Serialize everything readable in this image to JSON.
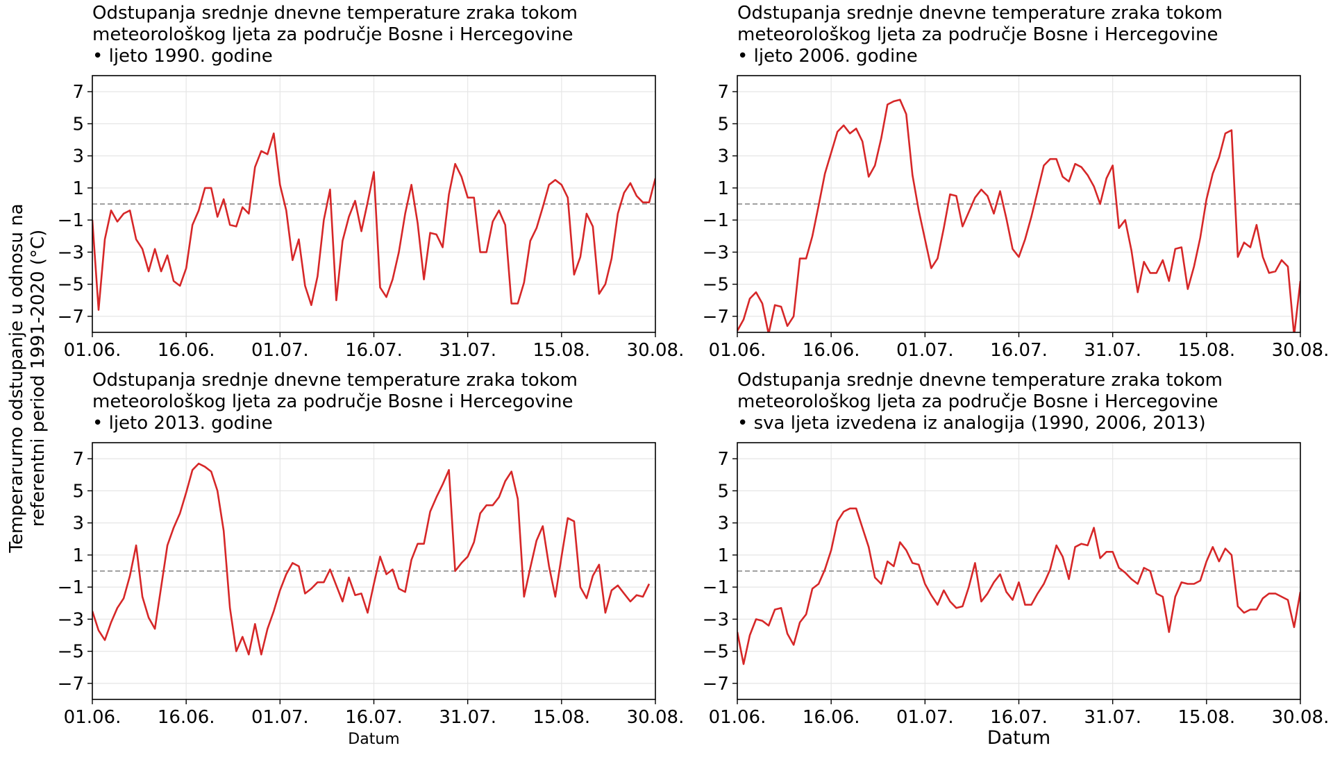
{
  "figure": {
    "ylabel_line1": "Temperarurno odstupanje u odnosu na",
    "ylabel_line2": "referentni period 1991-2020 (°C)",
    "xlabel": "Datum",
    "colors": {
      "line": "#d62728",
      "zero_line": "#808080",
      "grid": "#e6e6e6",
      "frame": "#000000"
    }
  },
  "chart_data": [
    {
      "type": "line",
      "title_lines": [
        "Odstupanja srednje dnevne temperature zraka tokom",
        "meteorološkog ljeta za područje Bosne i Hercegovine",
        "• ljeto 1990. godine"
      ],
      "xlabel": "",
      "x_start": "01.06.",
      "x_tick_labels": [
        "01.06.",
        "16.06.",
        "01.07.",
        "16.07.",
        "31.07.",
        "15.08.",
        "30.08."
      ],
      "x_tick_days": [
        0,
        15,
        30,
        45,
        60,
        75,
        90
      ],
      "xlim_days": [
        0,
        90
      ],
      "y_ticks": [
        -7,
        -5,
        -3,
        -1,
        1,
        3,
        5,
        7
      ],
      "ylim": [
        -8,
        8
      ],
      "grid": true,
      "reference_line": 0,
      "values": [
        -1.0,
        -6.6,
        -2.2,
        -0.4,
        -1.1,
        -0.6,
        -0.4,
        -2.2,
        -2.8,
        -4.2,
        -2.8,
        -4.2,
        -3.2,
        -4.8,
        -5.1,
        -4.0,
        -1.3,
        -0.4,
        1.0,
        1.0,
        -0.8,
        0.3,
        -1.3,
        -1.4,
        -0.2,
        -0.6,
        2.3,
        3.3,
        3.1,
        4.4,
        1.2,
        -0.4,
        -3.5,
        -2.2,
        -5.1,
        -6.3,
        -4.5,
        -1.0,
        0.9,
        -6.0,
        -2.3,
        -0.8,
        0.2,
        -1.7,
        0.1,
        2.0,
        -5.2,
        -5.8,
        -4.7,
        -3.0,
        -0.6,
        1.2,
        -1.2,
        -4.7,
        -1.8,
        -1.9,
        -2.7,
        0.6,
        2.5,
        1.7,
        0.4,
        0.4,
        -3.0,
        -3.0,
        -1.1,
        -0.4,
        -1.3,
        -6.2,
        -6.2,
        -4.9,
        -2.3,
        -1.5,
        -0.2,
        1.2,
        1.5,
        1.2,
        0.4,
        -4.4,
        -3.3,
        -0.6,
        -1.4,
        -5.6,
        -5.0,
        -3.4,
        -0.6,
        0.7,
        1.3,
        0.5,
        0.1,
        0.1,
        1.6
      ]
    },
    {
      "type": "line",
      "title_lines": [
        "Odstupanja srednje dnevne temperature zraka tokom",
        "meteorološkog ljeta za područje Bosne i Hercegovine",
        "• ljeto 2006. godine"
      ],
      "xlabel": "",
      "x_start": "01.06.",
      "x_tick_labels": [
        "01.06.",
        "16.06.",
        "01.07.",
        "16.07.",
        "31.07.",
        "15.08.",
        "30.08."
      ],
      "x_tick_days": [
        0,
        15,
        30,
        45,
        60,
        75,
        90
      ],
      "xlim_days": [
        0,
        90
      ],
      "y_ticks": [
        -7,
        -5,
        -3,
        -1,
        1,
        3,
        5,
        7
      ],
      "ylim": [
        -8,
        8
      ],
      "grid": true,
      "reference_line": 0,
      "values": [
        -7.9,
        -7.2,
        -5.9,
        -5.5,
        -6.2,
        -8.1,
        -6.3,
        -6.4,
        -7.6,
        -7.0,
        -3.4,
        -3.4,
        -2.0,
        -0.1,
        1.9,
        3.2,
        4.5,
        4.9,
        4.4,
        4.7,
        3.9,
        1.7,
        2.4,
        4.1,
        6.2,
        6.4,
        6.5,
        5.6,
        1.8,
        -0.4,
        -2.2,
        -4.0,
        -3.4,
        -1.5,
        0.6,
        0.5,
        -1.4,
        -0.5,
        0.4,
        0.9,
        0.5,
        -0.6,
        0.8,
        -0.9,
        -2.8,
        -3.3,
        -2.2,
        -0.8,
        0.8,
        2.4,
        2.8,
        2.8,
        1.7,
        1.4,
        2.5,
        2.3,
        1.8,
        1.1,
        0.0,
        1.6,
        2.4,
        -1.5,
        -1.0,
        -2.9,
        -5.5,
        -3.6,
        -4.3,
        -4.3,
        -3.5,
        -4.8,
        -2.8,
        -2.7,
        -5.3,
        -3.9,
        -2.1,
        0.3,
        1.9,
        2.9,
        4.4,
        4.6,
        -3.3,
        -2.4,
        -2.7,
        -1.3,
        -3.3,
        -4.3,
        -4.2,
        -3.5,
        -3.9,
        -8.2,
        -4.8
      ]
    },
    {
      "type": "line",
      "title_lines": [
        "Odstupanja srednje dnevne temperature zraka tokom",
        "meteorološkog ljeta za područje Bosne i Hercegovine",
        "• ljeto 2013. godine"
      ],
      "xlabel": "Datum",
      "x_start": "01.06.",
      "x_tick_labels": [
        "01.06.",
        "16.06.",
        "01.07.",
        "16.07.",
        "31.07.",
        "15.08.",
        "30.08."
      ],
      "x_tick_days": [
        0,
        15,
        30,
        45,
        60,
        75,
        90
      ],
      "xlim_days": [
        0,
        90
      ],
      "y_ticks": [
        -7,
        -5,
        -3,
        -1,
        1,
        3,
        5,
        7
      ],
      "ylim": [
        -8,
        8
      ],
      "grid": true,
      "reference_line": 0,
      "values": [
        -2.5,
        -3.7,
        -4.3,
        -3.2,
        -2.3,
        -1.7,
        -0.3,
        1.6,
        -1.6,
        -2.9,
        -3.6,
        -1.0,
        1.6,
        2.7,
        3.6,
        4.9,
        6.3,
        6.7,
        6.5,
        6.2,
        5.0,
        2.5,
        -2.3,
        -5.0,
        -4.1,
        -5.2,
        -3.3,
        -5.2,
        -3.6,
        -2.5,
        -1.2,
        -0.2,
        0.5,
        0.3,
        -1.4,
        -1.1,
        -0.7,
        -0.7,
        0.1,
        -0.9,
        -1.9,
        -0.4,
        -1.5,
        -1.4,
        -2.6,
        -0.8,
        0.9,
        -0.2,
        0.1,
        -1.1,
        -1.3,
        0.7,
        1.7,
        1.7,
        3.7,
        4.6,
        5.4,
        6.3,
        0.0,
        0.5,
        0.9,
        1.8,
        3.6,
        4.1,
        4.1,
        4.6,
        5.6,
        6.2,
        4.5,
        -1.6,
        0.2,
        1.9,
        2.8,
        0.3,
        -1.6,
        0.9,
        3.3,
        3.1,
        -1.0,
        -1.7,
        -0.3,
        0.4,
        -2.6,
        -1.2,
        -0.9,
        -1.4,
        -1.9,
        -1.5,
        -1.6,
        -0.8
      ]
    },
    {
      "type": "line",
      "title_lines": [
        "Odstupanja srednje dnevne temperature zraka tokom",
        "meteorološkog ljeta za područje Bosne i Hercegovine",
        "• sva ljeta izvedena iz analogija (1990, 2006, 2013)"
      ],
      "xlabel": "Datum",
      "x_start": "01.06.",
      "x_tick_labels": [
        "01.06.",
        "16.06.",
        "01.07.",
        "16.07.",
        "31.07.",
        "15.08.",
        "30.08."
      ],
      "x_tick_days": [
        0,
        15,
        30,
        45,
        60,
        75,
        90
      ],
      "xlim_days": [
        0,
        90
      ],
      "y_ticks": [
        -7,
        -5,
        -3,
        -1,
        1,
        3,
        5,
        7
      ],
      "ylim": [
        -8,
        8
      ],
      "grid": true,
      "reference_line": 0,
      "values": [
        -3.8,
        -5.8,
        -4.0,
        -3.0,
        -3.1,
        -3.4,
        -2.4,
        -2.3,
        -3.9,
        -4.6,
        -3.2,
        -2.7,
        -1.1,
        -0.8,
        0.1,
        1.3,
        3.1,
        3.7,
        3.9,
        3.9,
        2.7,
        1.5,
        -0.4,
        -0.8,
        0.6,
        0.3,
        1.8,
        1.3,
        0.5,
        0.4,
        -0.8,
        -1.5,
        -2.1,
        -1.2,
        -1.9,
        -2.3,
        -2.2,
        -1.0,
        0.5,
        -1.9,
        -1.4,
        -0.7,
        -0.2,
        -1.3,
        -1.8,
        -0.7,
        -2.1,
        -2.1,
        -1.4,
        -0.8,
        0.1,
        1.6,
        0.9,
        -0.5,
        1.5,
        1.7,
        1.6,
        2.7,
        0.8,
        1.2,
        1.2,
        0.2,
        -0.1,
        -0.5,
        -0.8,
        0.2,
        0.0,
        -1.4,
        -1.6,
        -3.8,
        -1.6,
        -0.7,
        -0.8,
        -0.8,
        -0.6,
        0.6,
        1.5,
        0.6,
        1.4,
        1.0,
        -2.2,
        -2.6,
        -2.4,
        -2.4,
        -1.7,
        -1.4,
        -1.4,
        -1.6,
        -1.8,
        -3.5,
        -1.3
      ]
    }
  ]
}
